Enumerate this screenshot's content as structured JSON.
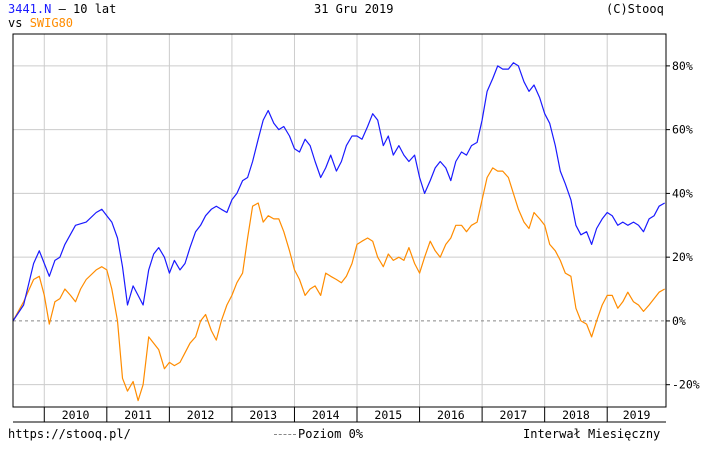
{
  "header": {
    "symbol": "3441.N",
    "symbol_suffix": " – 10 lat",
    "vs_prefix": "vs ",
    "compare_symbol": "SWIG80",
    "date": "31 Gru 2019",
    "copyright": "(C)Stooq"
  },
  "footer": {
    "url": "https://stooq.pl/",
    "baseline_legend": "Poziom 0%",
    "interval": "Interwał Miesięczny"
  },
  "colors": {
    "series_main": "#1a1aff",
    "series_compare": "#ff8c00",
    "compare_label": "#ff8c00",
    "symbol_label": "#1a1aff",
    "baseline": "#888888",
    "grid": "#cccccc"
  },
  "chart_data": {
    "type": "line",
    "x_unit": "year",
    "y_unit": "%",
    "xlim": [
      2009.5,
      2019.94
    ],
    "ylim": [
      -27,
      90
    ],
    "grid": true,
    "y_ticks": [
      -20,
      0,
      20,
      40,
      60,
      80
    ],
    "y_tick_labels": [
      "-20%",
      "0%",
      "20%",
      "40%",
      "60%",
      "80%"
    ],
    "x_ticks": [
      2010,
      2011,
      2012,
      2013,
      2014,
      2015,
      2016,
      2017,
      2018,
      2019
    ],
    "x_tick_labels": [
      "2010",
      "2011",
      "2012",
      "2013",
      "2014",
      "2015",
      "2016",
      "2017",
      "2018",
      "2019"
    ],
    "series": [
      {
        "name": "3441.N",
        "points": [
          [
            2009.5,
            0
          ],
          [
            2009.67,
            5
          ],
          [
            2009.83,
            18
          ],
          [
            2009.92,
            22
          ],
          [
            2010.0,
            18
          ],
          [
            2010.08,
            14
          ],
          [
            2010.17,
            19
          ],
          [
            2010.25,
            20
          ],
          [
            2010.33,
            24
          ],
          [
            2010.5,
            30
          ],
          [
            2010.67,
            31
          ],
          [
            2010.83,
            34
          ],
          [
            2010.92,
            35
          ],
          [
            2011.0,
            33
          ],
          [
            2011.08,
            31
          ],
          [
            2011.17,
            26
          ],
          [
            2011.25,
            17
          ],
          [
            2011.33,
            5
          ],
          [
            2011.42,
            11
          ],
          [
            2011.5,
            8
          ],
          [
            2011.58,
            5
          ],
          [
            2011.67,
            16
          ],
          [
            2011.75,
            21
          ],
          [
            2011.83,
            23
          ],
          [
            2011.92,
            20
          ],
          [
            2012.0,
            15
          ],
          [
            2012.08,
            19
          ],
          [
            2012.17,
            16
          ],
          [
            2012.25,
            18
          ],
          [
            2012.33,
            23
          ],
          [
            2012.42,
            28
          ],
          [
            2012.5,
            30
          ],
          [
            2012.58,
            33
          ],
          [
            2012.67,
            35
          ],
          [
            2012.75,
            36
          ],
          [
            2012.83,
            35
          ],
          [
            2012.92,
            34
          ],
          [
            2013.0,
            38
          ],
          [
            2013.08,
            40
          ],
          [
            2013.17,
            44
          ],
          [
            2013.25,
            45
          ],
          [
            2013.33,
            50
          ],
          [
            2013.42,
            57
          ],
          [
            2013.5,
            63
          ],
          [
            2013.58,
            66
          ],
          [
            2013.67,
            62
          ],
          [
            2013.75,
            60
          ],
          [
            2013.83,
            61
          ],
          [
            2013.92,
            58
          ],
          [
            2014.0,
            54
          ],
          [
            2014.08,
            53
          ],
          [
            2014.17,
            57
          ],
          [
            2014.25,
            55
          ],
          [
            2014.33,
            50
          ],
          [
            2014.42,
            45
          ],
          [
            2014.5,
            48
          ],
          [
            2014.58,
            52
          ],
          [
            2014.67,
            47
          ],
          [
            2014.75,
            50
          ],
          [
            2014.83,
            55
          ],
          [
            2014.92,
            58
          ],
          [
            2015.0,
            58
          ],
          [
            2015.08,
            57
          ],
          [
            2015.17,
            61
          ],
          [
            2015.25,
            65
          ],
          [
            2015.33,
            63
          ],
          [
            2015.42,
            55
          ],
          [
            2015.5,
            58
          ],
          [
            2015.58,
            52
          ],
          [
            2015.67,
            55
          ],
          [
            2015.75,
            52
          ],
          [
            2015.83,
            50
          ],
          [
            2015.92,
            52
          ],
          [
            2016.0,
            45
          ],
          [
            2016.08,
            40
          ],
          [
            2016.17,
            44
          ],
          [
            2016.25,
            48
          ],
          [
            2016.33,
            50
          ],
          [
            2016.42,
            48
          ],
          [
            2016.5,
            44
          ],
          [
            2016.58,
            50
          ],
          [
            2016.67,
            53
          ],
          [
            2016.75,
            52
          ],
          [
            2016.83,
            55
          ],
          [
            2016.92,
            56
          ],
          [
            2017.0,
            63
          ],
          [
            2017.08,
            72
          ],
          [
            2017.17,
            76
          ],
          [
            2017.25,
            80
          ],
          [
            2017.33,
            79
          ],
          [
            2017.42,
            79
          ],
          [
            2017.5,
            81
          ],
          [
            2017.58,
            80
          ],
          [
            2017.67,
            75
          ],
          [
            2017.75,
            72
          ],
          [
            2017.83,
            74
          ],
          [
            2017.92,
            70
          ],
          [
            2018.0,
            65
          ],
          [
            2018.08,
            62
          ],
          [
            2018.17,
            55
          ],
          [
            2018.25,
            47
          ],
          [
            2018.33,
            43
          ],
          [
            2018.42,
            38
          ],
          [
            2018.5,
            30
          ],
          [
            2018.58,
            27
          ],
          [
            2018.67,
            28
          ],
          [
            2018.75,
            24
          ],
          [
            2018.83,
            29
          ],
          [
            2018.92,
            32
          ],
          [
            2019.0,
            34
          ],
          [
            2019.08,
            33
          ],
          [
            2019.17,
            30
          ],
          [
            2019.25,
            31
          ],
          [
            2019.33,
            30
          ],
          [
            2019.42,
            31
          ],
          [
            2019.5,
            30
          ],
          [
            2019.58,
            28
          ],
          [
            2019.67,
            32
          ],
          [
            2019.75,
            33
          ],
          [
            2019.83,
            36
          ],
          [
            2019.92,
            37
          ]
        ]
      },
      {
        "name": "SWIG80",
        "points": [
          [
            2009.5,
            0
          ],
          [
            2009.67,
            6
          ],
          [
            2009.83,
            13
          ],
          [
            2009.92,
            14
          ],
          [
            2010.0,
            8
          ],
          [
            2010.08,
            -1
          ],
          [
            2010.17,
            6
          ],
          [
            2010.25,
            7
          ],
          [
            2010.33,
            10
          ],
          [
            2010.42,
            8
          ],
          [
            2010.5,
            6
          ],
          [
            2010.58,
            10
          ],
          [
            2010.67,
            13
          ],
          [
            2010.83,
            16
          ],
          [
            2010.92,
            17
          ],
          [
            2011.0,
            16
          ],
          [
            2011.08,
            10
          ],
          [
            2011.17,
            0
          ],
          [
            2011.25,
            -18
          ],
          [
            2011.33,
            -22
          ],
          [
            2011.42,
            -19
          ],
          [
            2011.5,
            -25
          ],
          [
            2011.58,
            -20
          ],
          [
            2011.67,
            -5
          ],
          [
            2011.75,
            -7
          ],
          [
            2011.83,
            -9
          ],
          [
            2011.92,
            -15
          ],
          [
            2012.0,
            -13
          ],
          [
            2012.08,
            -14
          ],
          [
            2012.17,
            -13
          ],
          [
            2012.25,
            -10
          ],
          [
            2012.33,
            -7
          ],
          [
            2012.42,
            -5
          ],
          [
            2012.5,
            0
          ],
          [
            2012.58,
            2
          ],
          [
            2012.67,
            -3
          ],
          [
            2012.75,
            -6
          ],
          [
            2012.83,
            0
          ],
          [
            2012.92,
            5
          ],
          [
            2013.0,
            8
          ],
          [
            2013.08,
            12
          ],
          [
            2013.17,
            15
          ],
          [
            2013.25,
            26
          ],
          [
            2013.33,
            36
          ],
          [
            2013.42,
            37
          ],
          [
            2013.5,
            31
          ],
          [
            2013.58,
            33
          ],
          [
            2013.67,
            32
          ],
          [
            2013.75,
            32
          ],
          [
            2013.83,
            28
          ],
          [
            2013.92,
            22
          ],
          [
            2014.0,
            16
          ],
          [
            2014.08,
            13
          ],
          [
            2014.17,
            8
          ],
          [
            2014.25,
            10
          ],
          [
            2014.33,
            11
          ],
          [
            2014.42,
            8
          ],
          [
            2014.5,
            15
          ],
          [
            2014.58,
            14
          ],
          [
            2014.67,
            13
          ],
          [
            2014.75,
            12
          ],
          [
            2014.83,
            14
          ],
          [
            2014.92,
            18
          ],
          [
            2015.0,
            24
          ],
          [
            2015.08,
            25
          ],
          [
            2015.17,
            26
          ],
          [
            2015.25,
            25
          ],
          [
            2015.33,
            20
          ],
          [
            2015.42,
            17
          ],
          [
            2015.5,
            21
          ],
          [
            2015.58,
            19
          ],
          [
            2015.67,
            20
          ],
          [
            2015.75,
            19
          ],
          [
            2015.83,
            23
          ],
          [
            2015.92,
            18
          ],
          [
            2016.0,
            15
          ],
          [
            2016.08,
            20
          ],
          [
            2016.17,
            25
          ],
          [
            2016.25,
            22
          ],
          [
            2016.33,
            20
          ],
          [
            2016.42,
            24
          ],
          [
            2016.5,
            26
          ],
          [
            2016.58,
            30
          ],
          [
            2016.67,
            30
          ],
          [
            2016.75,
            28
          ],
          [
            2016.83,
            30
          ],
          [
            2016.92,
            31
          ],
          [
            2017.0,
            38
          ],
          [
            2017.08,
            45
          ],
          [
            2017.17,
            48
          ],
          [
            2017.25,
            47
          ],
          [
            2017.33,
            47
          ],
          [
            2017.42,
            45
          ],
          [
            2017.5,
            40
          ],
          [
            2017.58,
            35
          ],
          [
            2017.67,
            31
          ],
          [
            2017.75,
            29
          ],
          [
            2017.83,
            34
          ],
          [
            2017.92,
            32
          ],
          [
            2018.0,
            30
          ],
          [
            2018.08,
            24
          ],
          [
            2018.17,
            22
          ],
          [
            2018.25,
            19
          ],
          [
            2018.33,
            15
          ],
          [
            2018.42,
            14
          ],
          [
            2018.5,
            4
          ],
          [
            2018.58,
            0
          ],
          [
            2018.67,
            -1
          ],
          [
            2018.75,
            -5
          ],
          [
            2018.83,
            0
          ],
          [
            2018.92,
            5
          ],
          [
            2019.0,
            8
          ],
          [
            2019.08,
            8
          ],
          [
            2019.17,
            4
          ],
          [
            2019.25,
            6
          ],
          [
            2019.33,
            9
          ],
          [
            2019.42,
            6
          ],
          [
            2019.5,
            5
          ],
          [
            2019.58,
            3
          ],
          [
            2019.67,
            5
          ],
          [
            2019.75,
            7
          ],
          [
            2019.83,
            9
          ],
          [
            2019.92,
            10
          ]
        ]
      }
    ]
  }
}
